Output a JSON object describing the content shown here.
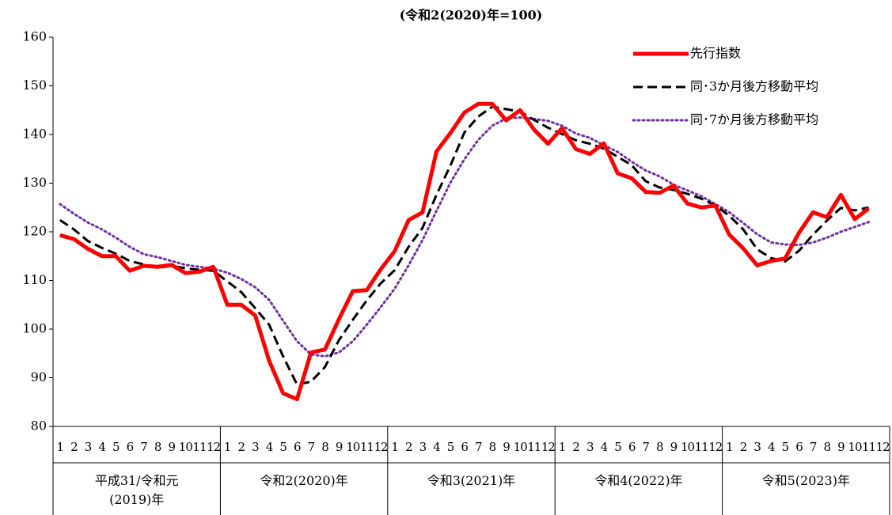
{
  "chart_data": {
    "type": "line",
    "title": "(令和2(2020)年=100)",
    "categories": [
      "1",
      "2",
      "3",
      "4",
      "5",
      "6",
      "7",
      "8",
      "9",
      "10",
      "11",
      "12",
      "1",
      "2",
      "3",
      "4",
      "5",
      "6",
      "7",
      "8",
      "9",
      "10",
      "11",
      "12",
      "1",
      "2",
      "3",
      "4",
      "5",
      "6",
      "7",
      "8",
      "9",
      "10",
      "11",
      "12",
      "1",
      "2",
      "3",
      "4",
      "5",
      "6",
      "7",
      "8",
      "9",
      "10",
      "11",
      "12",
      "1",
      "2",
      "3",
      "4",
      "5",
      "6",
      "7",
      "8",
      "9",
      "10",
      "11",
      "12"
    ],
    "groups": [
      [
        "平成31/令和元",
        "(2019)年"
      ],
      [
        "令和2(2020)年"
      ],
      [
        "令和3(2021)年"
      ],
      [
        "令和4(2022)年"
      ],
      [
        "令和5(2023)年"
      ]
    ],
    "ylim": [
      80,
      160
    ],
    "yticks": [
      80,
      90,
      100,
      110,
      120,
      130,
      140,
      150,
      160
    ],
    "grid": false,
    "legend": "top-right",
    "series": [
      {
        "name": "先行指数",
        "color": "#ff0000",
        "line_style": "solid",
        "values": [
          119.3,
          118.5,
          116.5,
          115,
          115,
          112,
          113,
          112.8,
          113.2,
          111.5,
          111.8,
          112.8,
          105,
          105,
          102.8,
          93.5,
          86.8,
          85.6,
          95.2,
          95.8,
          102,
          107.8,
          108,
          112.3,
          116,
          122.4,
          124,
          136.5,
          140.3,
          144.5,
          146.3,
          146.3,
          142.9,
          145,
          141,
          138.1,
          141.3,
          137,
          136,
          138.2,
          132,
          131,
          128.2,
          128,
          129.5,
          125.8,
          125,
          125.4,
          119.4,
          116.6,
          113.1,
          114,
          114.5,
          119.8,
          124,
          123,
          127.6,
          122.6,
          124.8,
          null
        ]
      },
      {
        "name": "同･3か月後方移動平均",
        "color": "#000000",
        "line_style": "dashed",
        "values": [
          122.4,
          120.5,
          118.1,
          116.7,
          115.5,
          114,
          113.3,
          112.6,
          113,
          112.5,
          112.2,
          112,
          109.8,
          107.6,
          104.3,
          100.9,
          94.4,
          88.6,
          89.2,
          92.2,
          97.7,
          101.9,
          105.9,
          109.4,
          112.1,
          116.9,
          120.8,
          127.6,
          133.6,
          140.4,
          143.7,
          145.7,
          145.2,
          144.7,
          143,
          141.4,
          140.1,
          138.8,
          138.1,
          137.1,
          135.4,
          133.7,
          130.4,
          129.1,
          128.6,
          127.8,
          126.8,
          125.4,
          123.3,
          120.5,
          116.4,
          114.6,
          113.9,
          116.1,
          119.4,
          122.3,
          124.9,
          124.4,
          125,
          null
        ]
      },
      {
        "name": "同･7か月後方移動平均",
        "color": "#7030a0",
        "line_style": "dotted",
        "values": [
          125.7,
          123.7,
          121.9,
          120.5,
          118.8,
          116.9,
          115.4,
          114.8,
          114,
          113.2,
          112.8,
          112.4,
          111.6,
          110.3,
          108.6,
          106,
          101.7,
          97.5,
          94.8,
          94.4,
          95.2,
          97.5,
          100.9,
          104.5,
          108.3,
          113.1,
          118.3,
          124.3,
          130.1,
          134.9,
          138.9,
          141.8,
          143.3,
          143.5,
          143.2,
          142.8,
          141.8,
          140.2,
          139.3,
          137.8,
          136.4,
          134.4,
          132.6,
          131.4,
          129.7,
          128.5,
          127.3,
          125.7,
          124,
          121.8,
          119.5,
          117.8,
          117.4,
          117.3,
          117.8,
          118.8,
          120,
          121,
          122,
          null
        ]
      }
    ]
  }
}
